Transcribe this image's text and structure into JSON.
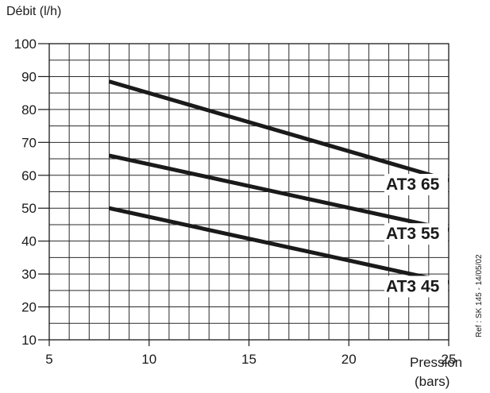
{
  "chart_data": {
    "type": "line",
    "ylabel": "Débit  (l/h)",
    "xlabel_line1": "Pression",
    "xlabel_line2": "(bars)",
    "xlim": [
      5,
      25
    ],
    "ylim": [
      10,
      100
    ],
    "xticks": [
      5,
      10,
      15,
      20,
      25
    ],
    "yticks": [
      10,
      20,
      30,
      40,
      50,
      60,
      70,
      80,
      90,
      100
    ],
    "grid": true,
    "series": [
      {
        "name": "AT3 65",
        "x": [
          8,
          25
        ],
        "y": [
          88.5,
          58.5
        ]
      },
      {
        "name": "AT3 55",
        "x": [
          8,
          25
        ],
        "y": [
          66,
          43.5
        ]
      },
      {
        "name": "AT3 45",
        "x": [
          8,
          25
        ],
        "y": [
          50,
          27.5
        ]
      }
    ],
    "reference": "Ref : SK 145 - 14/05/02"
  }
}
